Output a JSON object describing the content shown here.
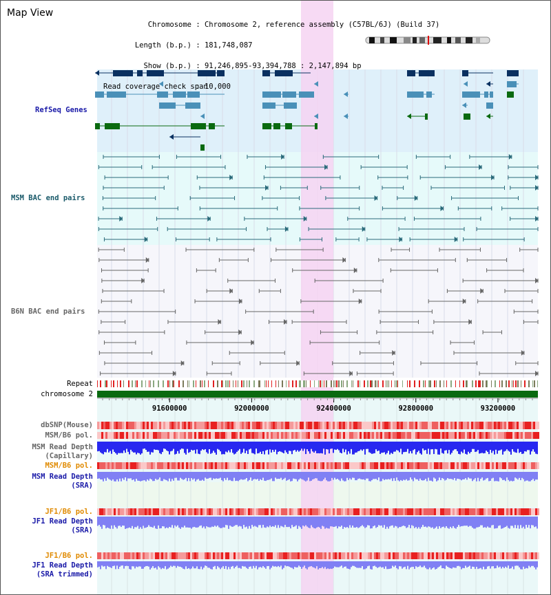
{
  "window": {
    "title": "Map View"
  },
  "info": {
    "chromosome_key": "Chromosome",
    "chromosome_value": "Chromosome 2, reference assembly (C57BL/6J) (Build 37)",
    "length_key": "Length (b.p.)",
    "length_value": "181,748,087",
    "show_key": "Show (b.p.)",
    "show_value": "91,246,895-93,394,788 : 2,147,894 bp",
    "coverage_key": "Read coverage check span",
    "coverage_value": "10,000"
  },
  "tracks": {
    "refseq": "RefSeq Genes",
    "msm_bac": "MSM BAC end pairs",
    "b6n_bac": "B6N BAC end pairs",
    "repeat": "Repeat",
    "chromosome": "chromosome 2",
    "dbsnp": "dbSNP(Mouse)",
    "msm_b6_pol": "MSM/B6 pol.",
    "msm_depth_cap_1": "MSM Read Depth",
    "msm_depth_cap_2": "(Capillary)",
    "msm_b6_pol_2": "MSM/B6 pol.",
    "msm_depth_sra_1": "MSM Read Depth",
    "msm_depth_sra_2": "(SRA)",
    "jf1_b6_pol": "JF1/B6 pol.",
    "jf1_depth_sra_1": "JF1 Read Depth",
    "jf1_depth_sra_2": "(SRA)",
    "jf1_b6_pol_2": "JF1/B6 pol.",
    "jf1_depth_trim_1": "JF1 Read Depth",
    "jf1_depth_trim_2": "(SRA trimmed)"
  },
  "axis": {
    "ticks": [
      "91600000",
      "92000000",
      "92400000",
      "92800000",
      "93200000"
    ],
    "tick_values": [
      91600000,
      92000000,
      92400000,
      92800000,
      93200000
    ],
    "range": [
      91246895,
      93394788
    ]
  },
  "colors": {
    "refseq_bg": "#dff0fa",
    "msm_bg": "#e6fafa",
    "b6n_bg": "#f6f6fb",
    "highlight": "#f6d4f2",
    "gene_dark": "#0a3060",
    "gene_mid": "#4a90b8",
    "gene_green": "#0a6a10",
    "msm_line": "#2a6a7a",
    "b6n_line": "#666666",
    "chromosome": "#0a6a10",
    "depth_blue": "#2828f0",
    "depth_light": "#8080f4",
    "pol_red": "#e84040",
    "label_blue": "#1a1aa8",
    "label_orange": "#e08a00"
  }
}
